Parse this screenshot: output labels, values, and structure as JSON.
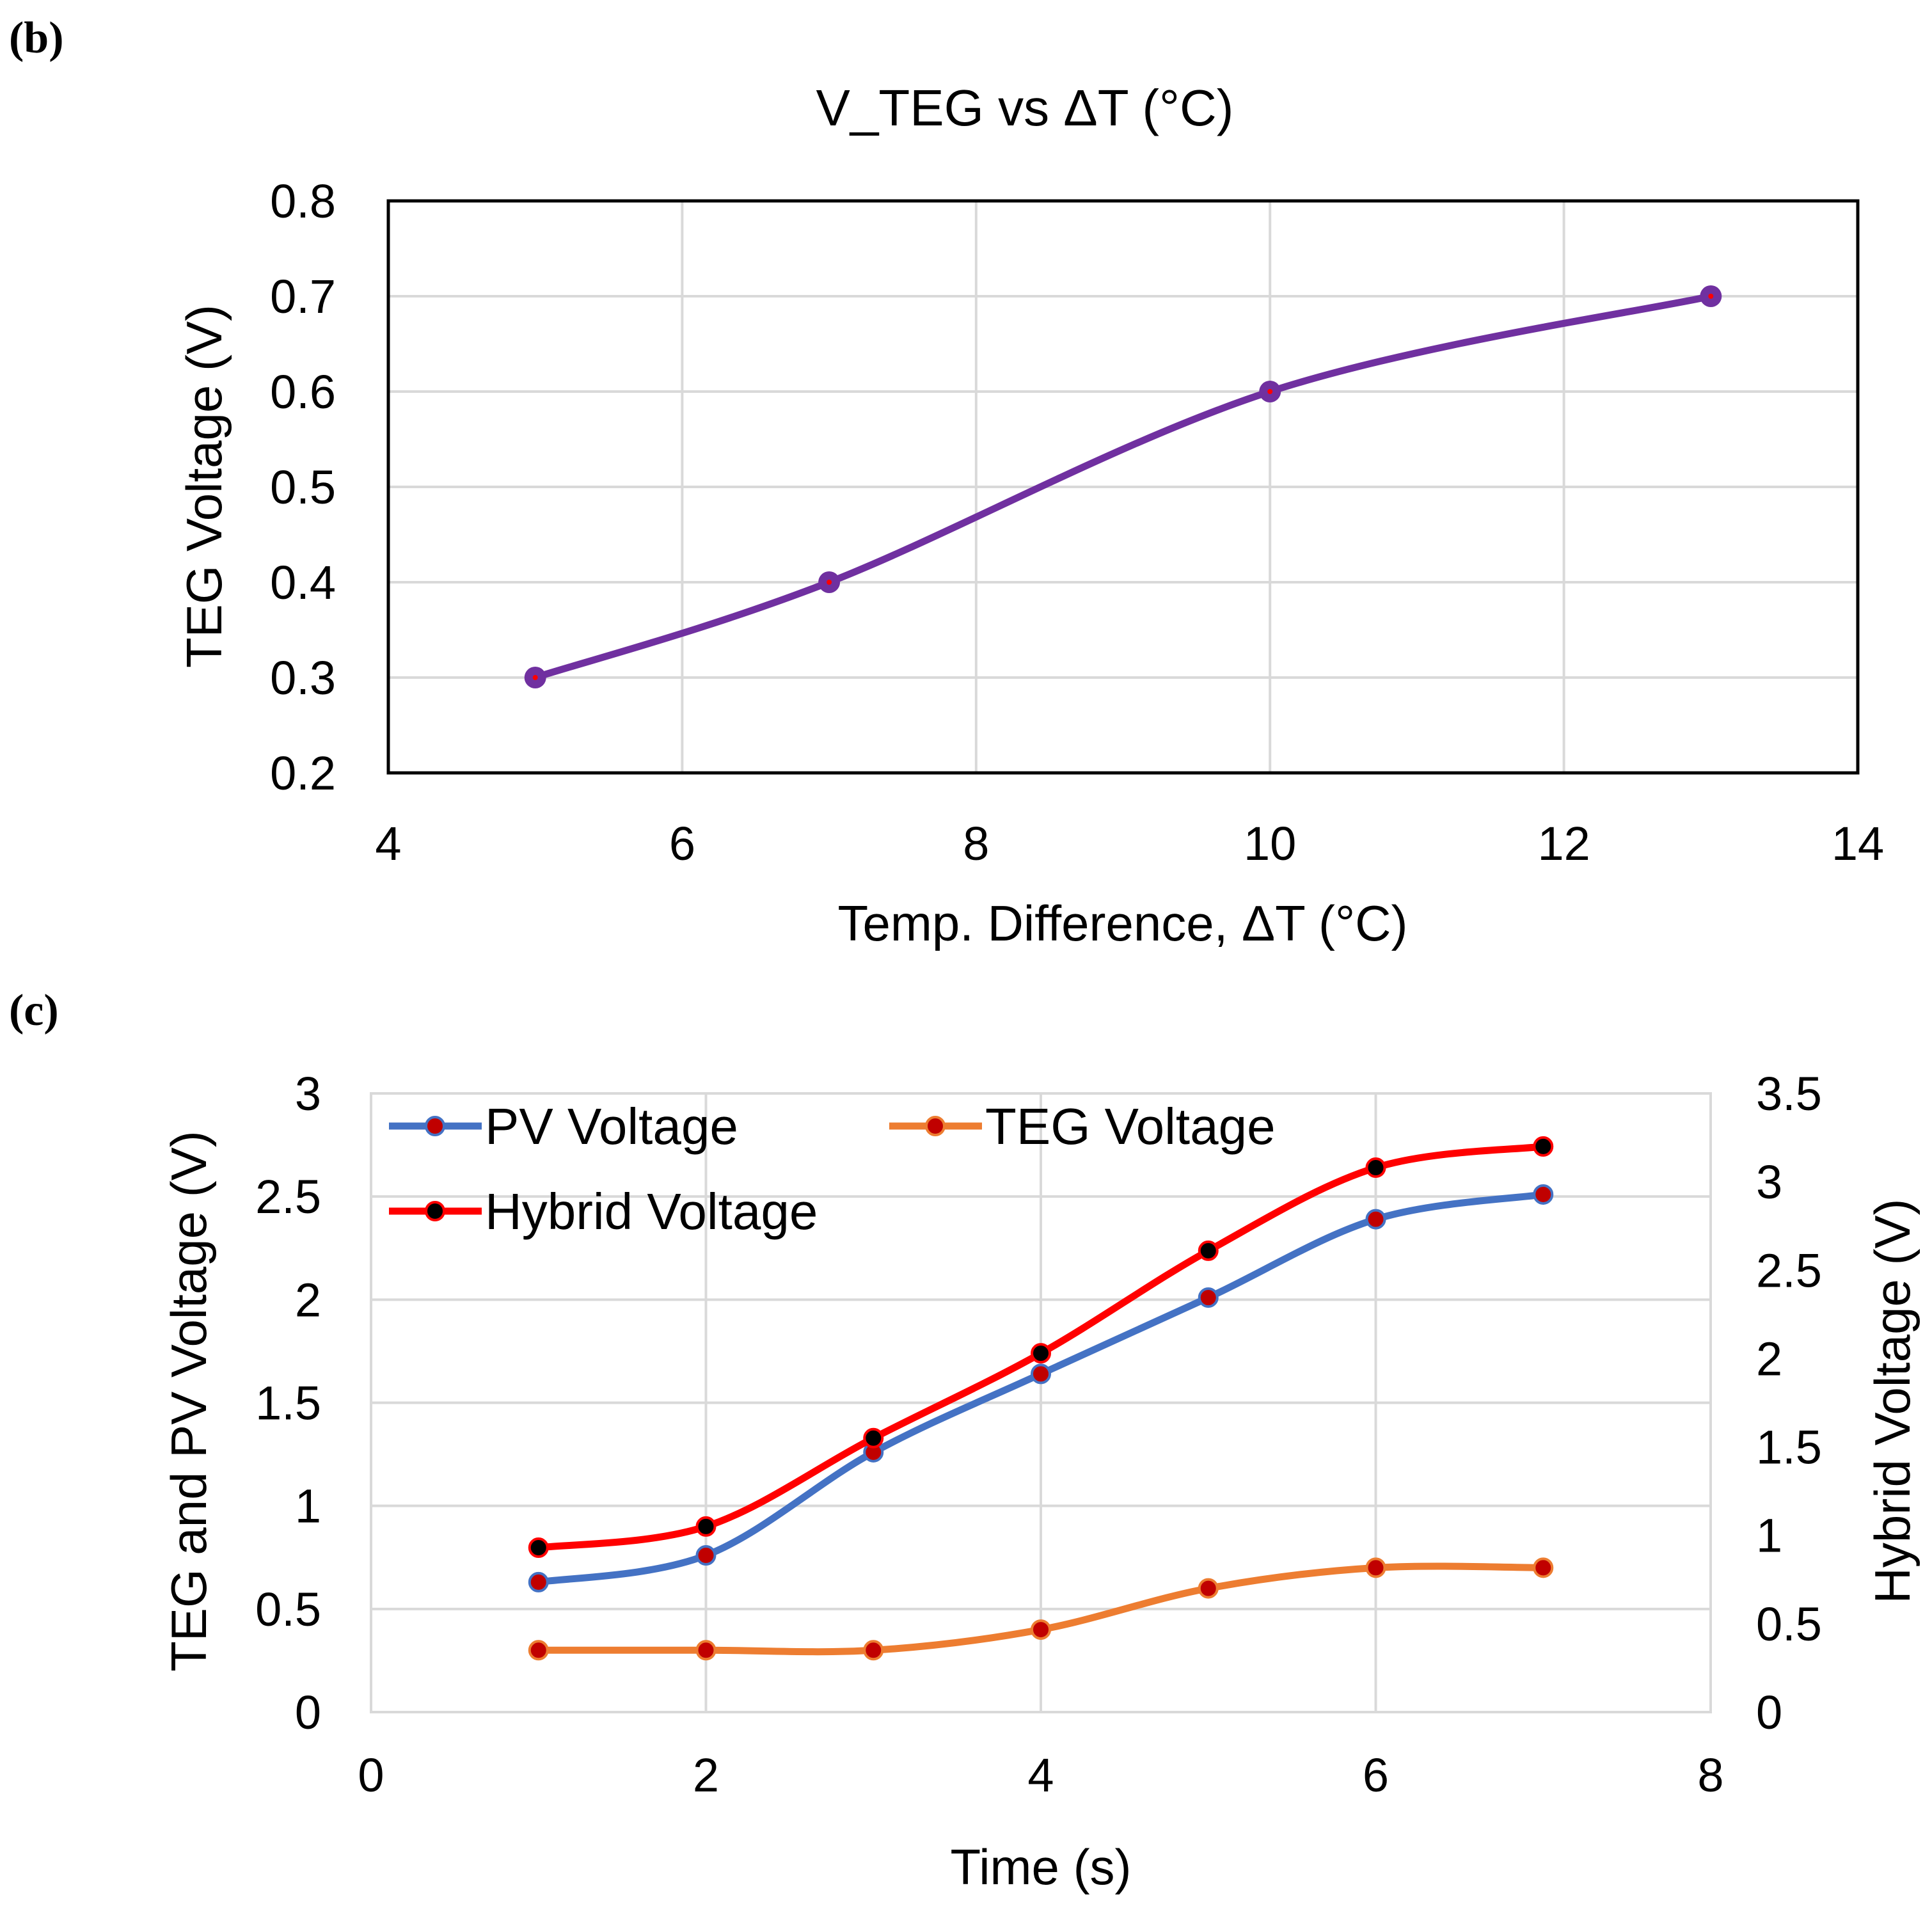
{
  "panel_b_tag": "(b)",
  "panel_c_tag": "(c)",
  "colors": {
    "purple": "#7030a0",
    "blue": "#4472c4",
    "orange": "#ed7d31",
    "red": "#ff0000",
    "marker_red": "#c00000",
    "marker_black": "#000000"
  },
  "chart_data": [
    {
      "type": "scatter",
      "smooth": true,
      "title": "V_TEG vs ΔT (°C)",
      "xlabel": "Temp. Difference, ΔT (°C)",
      "ylabel": "TEG Voltage (V)",
      "xlim": [
        4,
        14
      ],
      "ylim": [
        0.2,
        0.8
      ],
      "x_ticks": [
        4,
        6,
        8,
        10,
        12,
        14
      ],
      "y_ticks": [
        0.2,
        0.3,
        0.4,
        0.5,
        0.6,
        0.7,
        0.8
      ],
      "x_tick_labels": [
        "4",
        "6",
        "8",
        "10",
        "12",
        "14"
      ],
      "y_tick_labels": [
        "0.2",
        "0.3",
        "0.4",
        "0.5",
        "0.6",
        "0.7",
        "0.8"
      ],
      "grid": true,
      "series": [
        {
          "name": "V_TEG",
          "x": [
            5,
            7,
            10,
            13
          ],
          "y": [
            0.3,
            0.4,
            0.6,
            0.7
          ]
        }
      ]
    },
    {
      "type": "scatter",
      "smooth": true,
      "title": "",
      "xlabel": "Time (s)",
      "ylabel": "TEG and PV Voltage (V)",
      "ylabel_right": "Hybrid Voltage (V)",
      "xlim": [
        0,
        8
      ],
      "ylim": [
        0,
        3
      ],
      "ylim_right": [
        0,
        3.5
      ],
      "x_ticks": [
        0,
        2,
        4,
        6,
        8
      ],
      "y_ticks": [
        0,
        0.5,
        1,
        1.5,
        2,
        2.5,
        3
      ],
      "y_ticks_right": [
        0,
        0.5,
        1,
        1.5,
        2,
        2.5,
        3,
        3.5
      ],
      "x_tick_labels": [
        "0",
        "2",
        "4",
        "6",
        "8"
      ],
      "y_tick_labels": [
        "0",
        "0.5",
        "1",
        "1.5",
        "2",
        "2.5",
        "3"
      ],
      "y_tick_labels_right": [
        "0",
        "0.5",
        "1",
        "1.5",
        "2",
        "2.5",
        "3",
        "3.5"
      ],
      "grid": true,
      "legend_position": "top-left",
      "series": [
        {
          "name": "PV Voltage",
          "axis": "left",
          "x": [
            1,
            2,
            3,
            4,
            5,
            6,
            7
          ],
          "y": [
            0.63,
            0.76,
            1.26,
            1.64,
            2.01,
            2.39,
            2.51
          ]
        },
        {
          "name": "TEG Voltage",
          "axis": "left",
          "x": [
            1,
            2,
            3,
            4,
            5,
            6,
            7
          ],
          "y": [
            0.3,
            0.3,
            0.3,
            0.4,
            0.6,
            0.7,
            0.7
          ]
        },
        {
          "name": "Hybrid Voltage",
          "axis": "right",
          "x": [
            1,
            2,
            3,
            4,
            5,
            6,
            7
          ],
          "y": [
            0.93,
            1.05,
            1.55,
            2.03,
            2.61,
            3.08,
            3.2
          ]
        }
      ]
    }
  ]
}
